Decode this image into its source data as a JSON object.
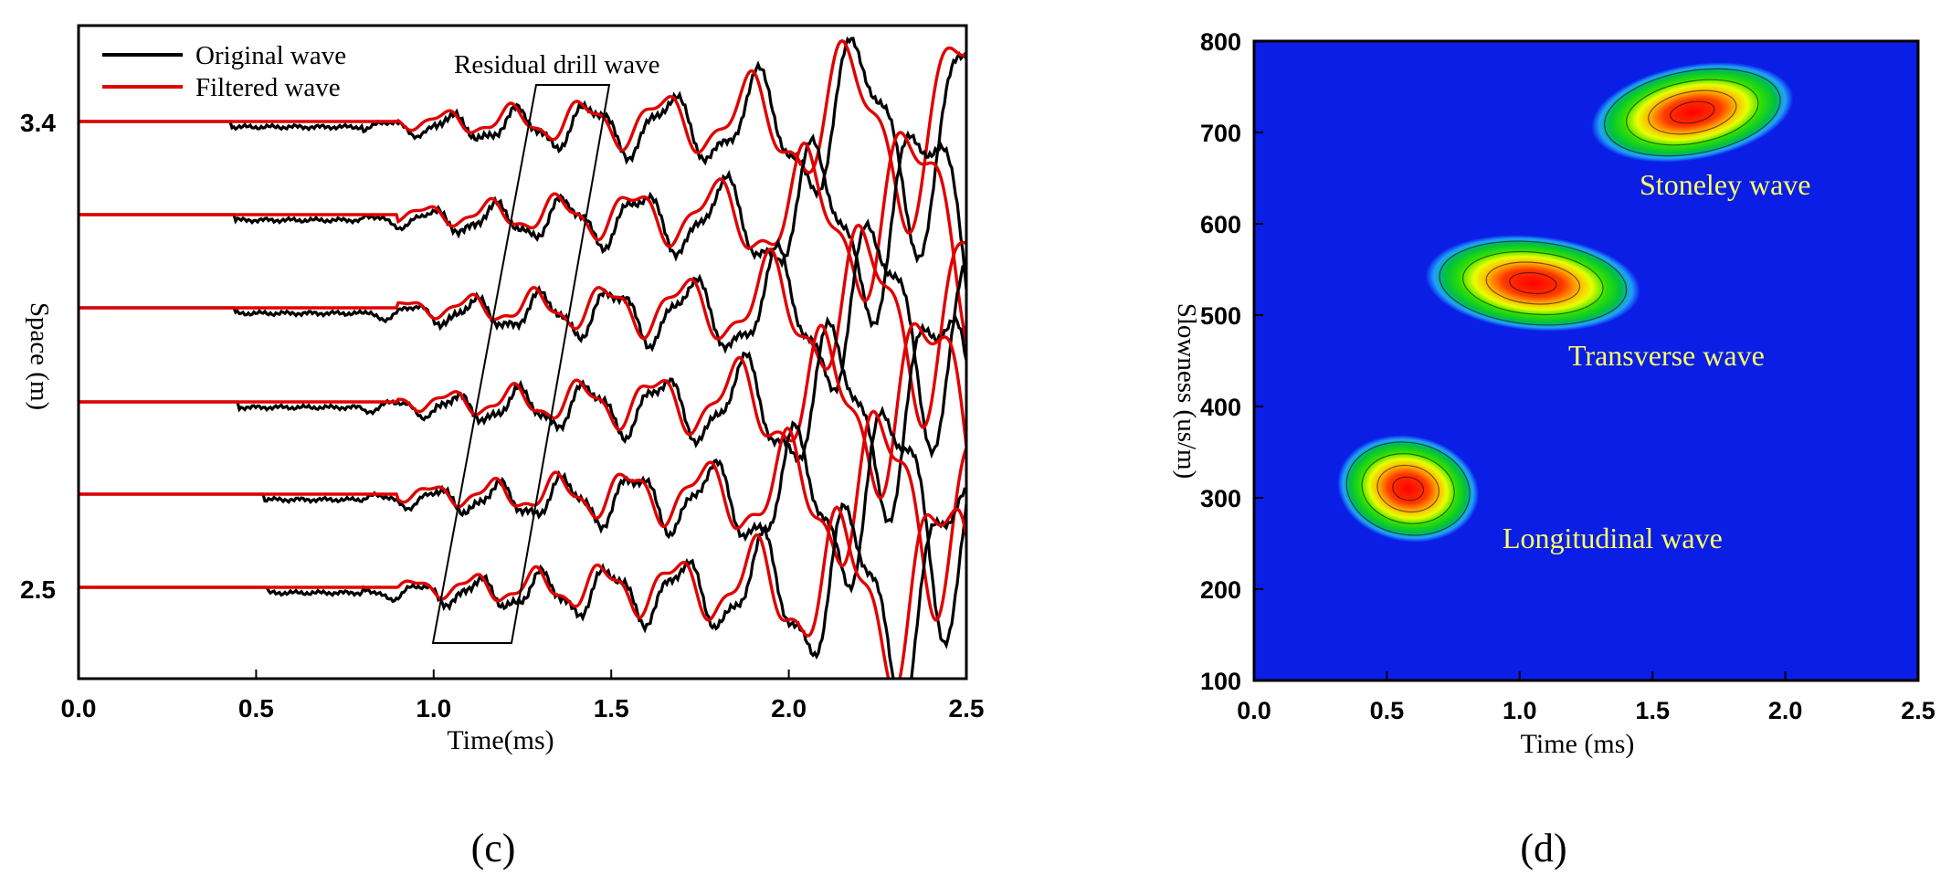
{
  "panels": {
    "c": {
      "caption": "(c)"
    },
    "d": {
      "caption": "(d)"
    }
  },
  "chart_data": [
    {
      "panel": "c",
      "type": "line",
      "title": "",
      "xlabel": "Time(ms)",
      "ylabel": "Space (m)",
      "xlim": [
        0.0,
        2.5
      ],
      "x_ticks": [
        "0.0",
        "0.5",
        "1.0",
        "1.5",
        "2.0",
        "2.5"
      ],
      "y_tick_labels": [
        "3.4",
        "2.5"
      ],
      "legend_position": "top-left",
      "series": [
        {
          "name": "Original wave",
          "color": "#000000"
        },
        {
          "name": "Filtered wave",
          "color": "#e00000"
        }
      ],
      "traces": [
        {
          "index": 1,
          "onset_ms": 0.43
        },
        {
          "index": 2,
          "onset_ms": 0.44
        },
        {
          "index": 3,
          "onset_ms": 0.44
        },
        {
          "index": 4,
          "onset_ms": 0.45
        },
        {
          "index": 5,
          "onset_ms": 0.52
        },
        {
          "index": 6,
          "onset_ms": 0.53
        }
      ],
      "annotations": [
        {
          "text": "Residual drill wave",
          "box_time_ms": [
            1.0,
            1.5
          ]
        }
      ]
    },
    {
      "panel": "d",
      "type": "heatmap",
      "title": "",
      "xlabel": "Time (ms)",
      "ylabel": "Slowness (us/m)",
      "xlim": [
        0.0,
        2.5
      ],
      "ylim": [
        100,
        800
      ],
      "x_ticks": [
        "0.0",
        "0.5",
        "1.0",
        "1.5",
        "2.0",
        "2.5"
      ],
      "y_ticks": [
        "100",
        "200",
        "300",
        "400",
        "500",
        "600",
        "700",
        "800"
      ],
      "background_color": "#0a1ee6",
      "label_color": "#ffff66",
      "blobs": [
        {
          "label": "Stoneley wave",
          "time_ms": 1.65,
          "slowness": 722
        },
        {
          "label": "Transverse wave",
          "time_ms": 1.05,
          "slowness": 535
        },
        {
          "label": "Longitudinal wave",
          "time_ms": 0.58,
          "slowness": 310
        }
      ]
    }
  ]
}
